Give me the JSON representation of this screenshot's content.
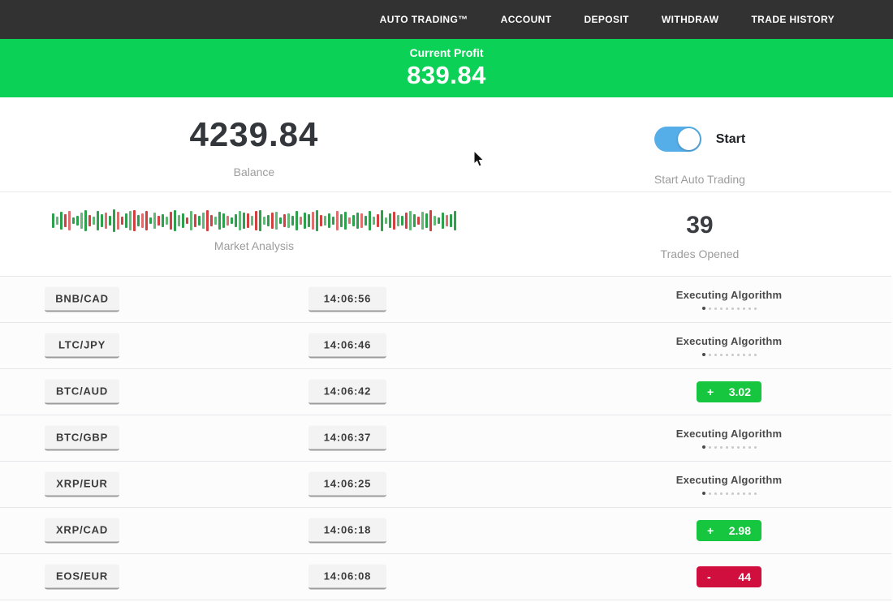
{
  "colors": {
    "navbar_bg": "#323232",
    "banner_green": "#0bd156",
    "badge_green": "#15c63e",
    "badge_red": "#d00f3e",
    "toggle_blue": "#56aee8",
    "bar_green": "#2ca04a",
    "bar_red": "#d43f3f",
    "text_dark": "#33373b",
    "text_gray": "#9c9c9c"
  },
  "navbar": {
    "items": [
      {
        "label": "AUTO TRADING™",
        "slug": "auto-trading"
      },
      {
        "label": "ACCOUNT",
        "slug": "account"
      },
      {
        "label": "DEPOSIT",
        "slug": "deposit"
      },
      {
        "label": "WITHDRAW",
        "slug": "withdraw"
      },
      {
        "label": "TRADE HISTORY",
        "slug": "trade-history"
      }
    ]
  },
  "profit_banner": {
    "label": "Current Profit",
    "value": "839.84"
  },
  "account": {
    "balance": "4239.84",
    "balance_label": "Balance",
    "toggle_label": "Start",
    "toggle_caption": "Start Auto Trading",
    "toggle_on": true
  },
  "market": {
    "label": "Market Analysis",
    "trades_opened": "39",
    "trades_opened_label": "Trades Opened",
    "bars": [
      "g18",
      "g10",
      "g22",
      "r16",
      "r24",
      "g8",
      "g12",
      "g20",
      "g26",
      "r14",
      "g10",
      "g24",
      "g16",
      "r20",
      "g12",
      "g28",
      "r22",
      "r10",
      "g18",
      "g24",
      "r26",
      "g14",
      "r18",
      "r24",
      "g8",
      "g20",
      "r12",
      "g16",
      "g10",
      "r22",
      "g26",
      "g14",
      "g18",
      "r8",
      "g24",
      "r16",
      "g12",
      "g20",
      "r26",
      "r14",
      "g10",
      "g22",
      "g18",
      "r12",
      "g8",
      "g16",
      "g24",
      "g20",
      "r18",
      "g12",
      "r24",
      "g26",
      "g10",
      "g14",
      "r20",
      "g22",
      "g8",
      "r16",
      "g18",
      "g12",
      "g24",
      "r10",
      "g20",
      "g16",
      "r22",
      "g26",
      "r14",
      "g12",
      "g18",
      "g10",
      "r24",
      "g16",
      "g22",
      "r8",
      "g14",
      "g20",
      "r18",
      "g12",
      "g24",
      "g10",
      "r16",
      "g26",
      "g8",
      "g18",
      "r22",
      "g14",
      "g12",
      "r20",
      "g24",
      "g16",
      "r10",
      "g22",
      "g18",
      "r26",
      "g12",
      "g8",
      "g20",
      "r14",
      "g16",
      "g24"
    ]
  },
  "executing": {
    "label": "Executing Algorithm",
    "dots_total": 10,
    "dots_active": 1
  },
  "trades": [
    {
      "pair": "BNB/CAD",
      "time": "14:06:56",
      "status": "executing"
    },
    {
      "pair": "LTC/JPY",
      "time": "14:06:46",
      "status": "executing"
    },
    {
      "pair": "BTC/AUD",
      "time": "14:06:42",
      "status": "profit",
      "sign": "+",
      "value": "3.02"
    },
    {
      "pair": "BTC/GBP",
      "time": "14:06:37",
      "status": "executing"
    },
    {
      "pair": "XRP/EUR",
      "time": "14:06:25",
      "status": "executing"
    },
    {
      "pair": "XRP/CAD",
      "time": "14:06:18",
      "status": "profit",
      "sign": "+",
      "value": "2.98"
    },
    {
      "pair": "EOS/EUR",
      "time": "14:06:08",
      "status": "loss",
      "sign": "-",
      "value": "44"
    }
  ]
}
